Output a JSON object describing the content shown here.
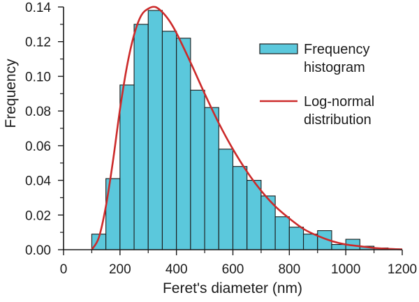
{
  "chart_data": {
    "type": "bar",
    "xlabel": "Feret's diameter (nm)",
    "ylabel": "Frequency",
    "xlim": [
      0,
      1200
    ],
    "ylim": [
      0,
      0.14
    ],
    "xticks": [
      0,
      200,
      400,
      600,
      800,
      1000,
      1200
    ],
    "yticks": [
      0.0,
      0.02,
      0.04,
      0.06,
      0.08,
      0.1,
      0.12,
      0.14
    ],
    "ytick_labels": [
      "0.00",
      "0.02",
      "0.04",
      "0.06",
      "0.08",
      "0.10",
      "0.12",
      "0.14"
    ],
    "grid": false,
    "legend_position": "top-right",
    "series": [
      {
        "name": "Frequency histogram",
        "kind": "histogram",
        "color": "#5bc8dc",
        "edge_color": "#1a1a1a",
        "bins": [
          {
            "x0": 100,
            "x1": 150,
            "value": 0.009
          },
          {
            "x0": 150,
            "x1": 200,
            "value": 0.041
          },
          {
            "x0": 200,
            "x1": 250,
            "value": 0.095
          },
          {
            "x0": 250,
            "x1": 300,
            "value": 0.13
          },
          {
            "x0": 300,
            "x1": 350,
            "value": 0.138
          },
          {
            "x0": 350,
            "x1": 400,
            "value": 0.126
          },
          {
            "x0": 400,
            "x1": 450,
            "value": 0.122
          },
          {
            "x0": 450,
            "x1": 500,
            "value": 0.092
          },
          {
            "x0": 500,
            "x1": 550,
            "value": 0.082
          },
          {
            "x0": 550,
            "x1": 600,
            "value": 0.058
          },
          {
            "x0": 600,
            "x1": 650,
            "value": 0.048
          },
          {
            "x0": 650,
            "x1": 700,
            "value": 0.04
          },
          {
            "x0": 700,
            "x1": 750,
            "value": 0.031
          },
          {
            "x0": 750,
            "x1": 800,
            "value": 0.019
          },
          {
            "x0": 800,
            "x1": 850,
            "value": 0.013
          },
          {
            "x0": 850,
            "x1": 900,
            "value": 0.009
          },
          {
            "x0": 900,
            "x1": 950,
            "value": 0.011
          },
          {
            "x0": 950,
            "x1": 1000,
            "value": 0.003
          },
          {
            "x0": 1000,
            "x1": 1050,
            "value": 0.006
          },
          {
            "x0": 1050,
            "x1": 1100,
            "value": 0.002
          },
          {
            "x0": 1100,
            "x1": 1150,
            "value": 0.001
          }
        ]
      },
      {
        "name": "Log-normal distribution",
        "kind": "line",
        "color": "#cc2a2a",
        "x": [
          100,
          125,
          150,
          175,
          200,
          225,
          250,
          275,
          300,
          325,
          350,
          375,
          400,
          450,
          500,
          550,
          600,
          650,
          700,
          750,
          800,
          850,
          900,
          950,
          1000,
          1050,
          1100,
          1150,
          1200
        ],
        "y": [
          0.0,
          0.007,
          0.025,
          0.051,
          0.081,
          0.106,
          0.124,
          0.135,
          0.139,
          0.14,
          0.137,
          0.132,
          0.125,
          0.108,
          0.09,
          0.073,
          0.058,
          0.045,
          0.034,
          0.025,
          0.018,
          0.012,
          0.008,
          0.005,
          0.003,
          0.002,
          0.001,
          0.0005,
          0.0002
        ]
      }
    ],
    "legend": {
      "histogram_label_lines": [
        "Frequency",
        "histogram"
      ],
      "line_label_lines": [
        "Log-normal",
        "distribution"
      ]
    }
  }
}
